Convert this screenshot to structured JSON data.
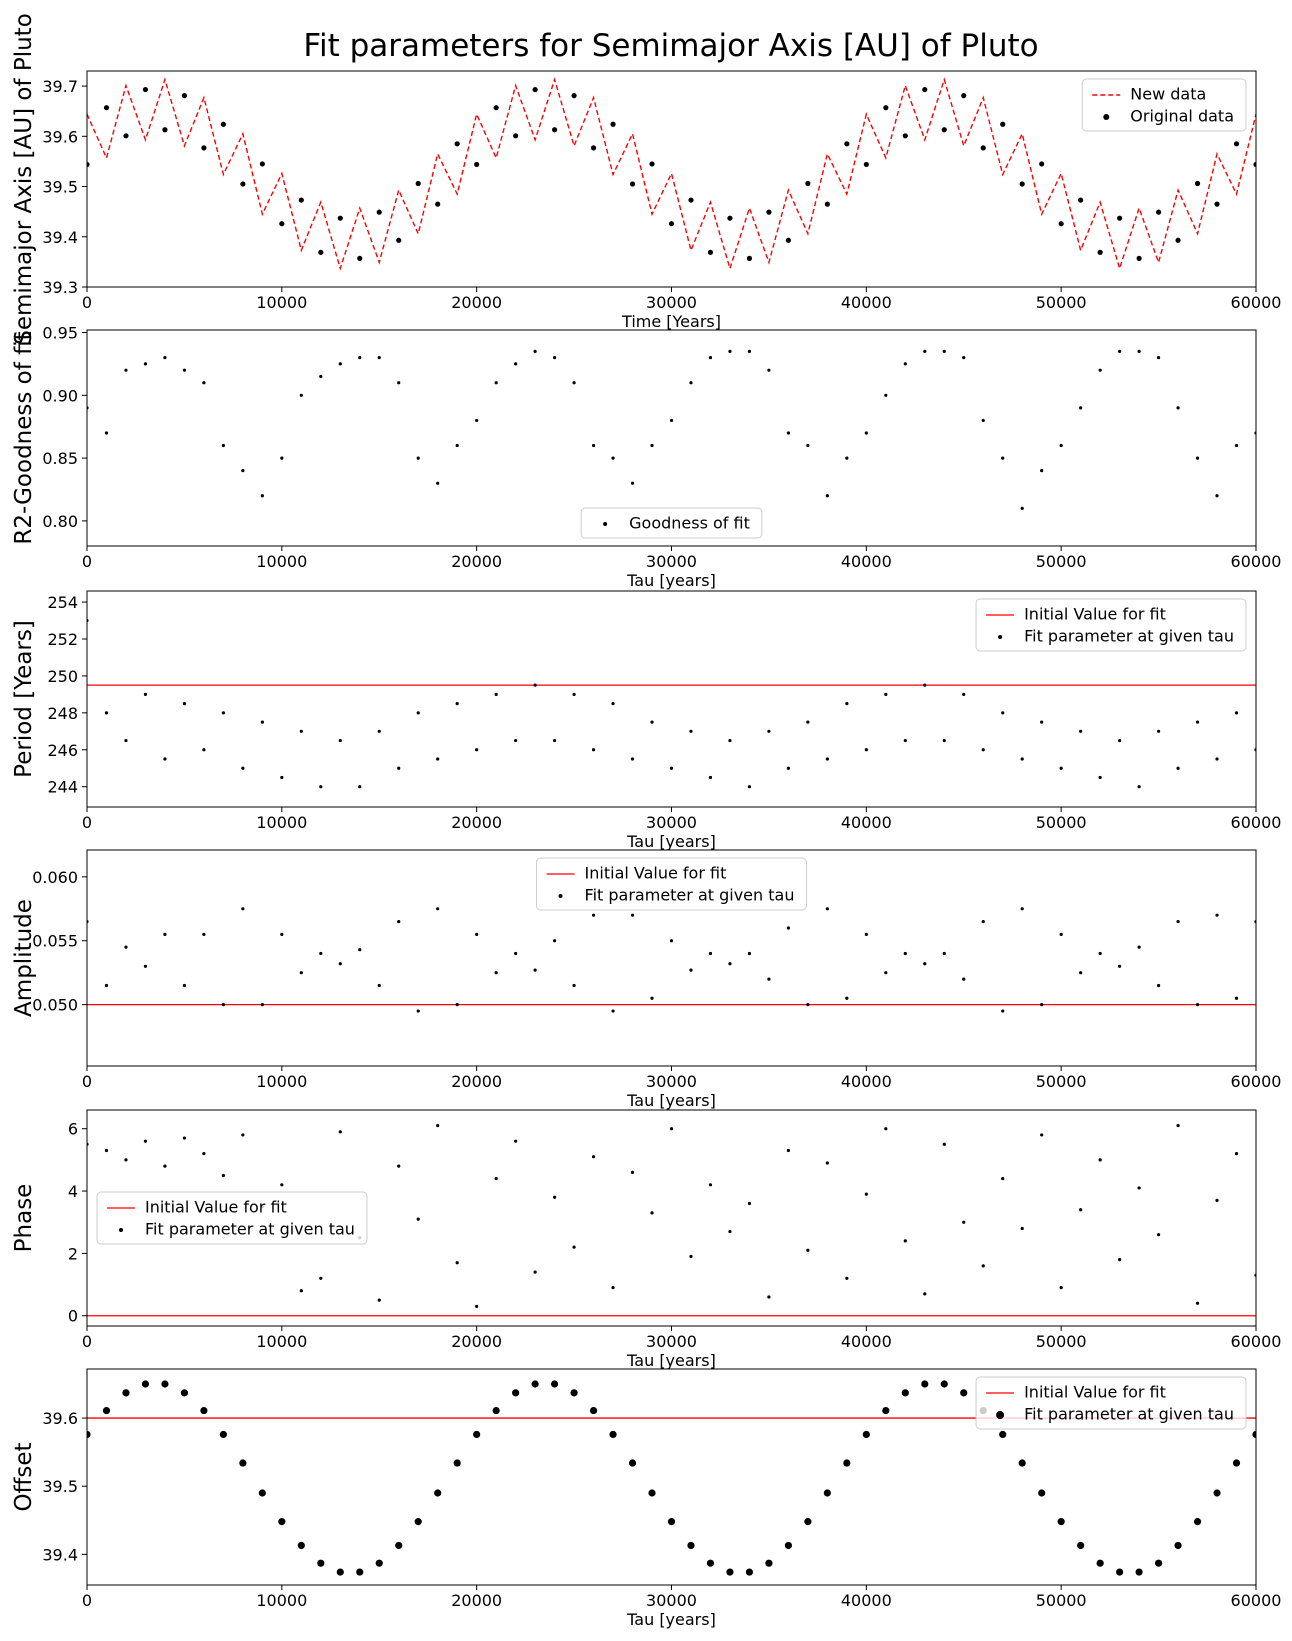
{
  "chart_data": [
    {
      "type": "line",
      "title": "Fit parameters for Semimajor Axis [AU] of Pluto",
      "xlabel": "Time [Years]",
      "ylabel": "Semimajor Axis [AU] of Pluto",
      "x": [
        0,
        1000,
        2000,
        3000,
        4000,
        5000,
        6000,
        7000,
        8000,
        9000,
        10000,
        11000,
        12000,
        13000,
        14000,
        15000,
        16000,
        17000,
        18000,
        19000,
        20000,
        21000,
        22000,
        23000,
        24000,
        25000,
        26000,
        27000,
        28000,
        29000,
        30000,
        31000,
        32000,
        33000,
        34000,
        35000,
        36000,
        37000,
        38000,
        39000,
        40000,
        41000,
        42000,
        43000,
        44000,
        45000,
        46000,
        47000,
        48000,
        49000,
        50000,
        51000,
        52000,
        53000,
        54000,
        55000,
        56000,
        57000,
        58000,
        59000,
        60000
      ],
      "series": [
        {
          "name": "New data",
          "color": "#ff0000",
          "mode": "dashed-line",
          "values": [
            39.644,
            39.557,
            39.701,
            39.593,
            39.713,
            39.581,
            39.677,
            39.524,
            39.605,
            39.445,
            39.526,
            39.373,
            39.469,
            39.337,
            39.457,
            39.349,
            39.493,
            39.406,
            39.565,
            39.485,
            39.644,
            39.557,
            39.701,
            39.593,
            39.713,
            39.581,
            39.677,
            39.524,
            39.605,
            39.445,
            39.526,
            39.373,
            39.469,
            39.337,
            39.457,
            39.349,
            39.493,
            39.406,
            39.565,
            39.485,
            39.644,
            39.557,
            39.701,
            39.593,
            39.713,
            39.581,
            39.677,
            39.524,
            39.605,
            39.445,
            39.526,
            39.373,
            39.469,
            39.337,
            39.457,
            39.349,
            39.493,
            39.406,
            39.565,
            39.485,
            39.644
          ]
        },
        {
          "name": "Original data",
          "color": "#000000",
          "mode": "points",
          "values": [
            39.544,
            39.657,
            39.601,
            39.693,
            39.613,
            39.681,
            39.577,
            39.624,
            39.505,
            39.545,
            39.426,
            39.473,
            39.369,
            39.437,
            39.357,
            39.449,
            39.393,
            39.506,
            39.465,
            39.585,
            39.544,
            39.657,
            39.601,
            39.693,
            39.613,
            39.681,
            39.577,
            39.624,
            39.505,
            39.545,
            39.426,
            39.473,
            39.369,
            39.437,
            39.357,
            39.449,
            39.393,
            39.506,
            39.465,
            39.585,
            39.544,
            39.657,
            39.601,
            39.693,
            39.613,
            39.681,
            39.577,
            39.624,
            39.505,
            39.545,
            39.426,
            39.473,
            39.369,
            39.437,
            39.357,
            39.449,
            39.393,
            39.506,
            39.465,
            39.585,
            39.544
          ]
        }
      ],
      "xlim": [
        0,
        60000
      ],
      "xticks": [
        0,
        10000,
        20000,
        30000,
        40000,
        50000,
        60000
      ],
      "ylim": [
        39.3,
        39.73
      ],
      "yticks": [
        39.3,
        39.4,
        39.5,
        39.6,
        39.7
      ],
      "legend": "upper right"
    },
    {
      "type": "scatter",
      "xlabel": "Tau [years]",
      "ylabel": "R2-Goodness of fit",
      "x": [
        0,
        1000,
        2000,
        3000,
        4000,
        5000,
        6000,
        7000,
        8000,
        9000,
        10000,
        11000,
        12000,
        13000,
        14000,
        15000,
        16000,
        17000,
        18000,
        19000,
        20000,
        21000,
        22000,
        23000,
        24000,
        25000,
        26000,
        27000,
        28000,
        29000,
        30000,
        31000,
        32000,
        33000,
        34000,
        35000,
        36000,
        37000,
        38000,
        39000,
        40000,
        41000,
        42000,
        43000,
        44000,
        45000,
        46000,
        47000,
        48000,
        49000,
        50000,
        51000,
        52000,
        53000,
        54000,
        55000,
        56000,
        57000,
        58000,
        59000,
        60000
      ],
      "series": [
        {
          "name": "Goodness of fit",
          "color": "#000000",
          "mode": "points",
          "values": [
            0.89,
            0.87,
            0.92,
            0.925,
            0.93,
            0.92,
            0.91,
            0.86,
            0.84,
            0.82,
            0.85,
            0.9,
            0.915,
            0.925,
            0.93,
            0.93,
            0.91,
            0.85,
            0.83,
            0.86,
            0.88,
            0.91,
            0.925,
            0.935,
            0.93,
            0.91,
            0.86,
            0.85,
            0.83,
            0.86,
            0.88,
            0.91,
            0.93,
            0.935,
            0.935,
            0.92,
            0.87,
            0.86,
            0.82,
            0.85,
            0.87,
            0.9,
            0.925,
            0.935,
            0.935,
            0.93,
            0.88,
            0.85,
            0.81,
            0.84,
            0.86,
            0.89,
            0.92,
            0.935,
            0.935,
            0.93,
            0.89,
            0.85,
            0.82,
            0.86,
            0.87
          ]
        }
      ],
      "xlim": [
        0,
        60000
      ],
      "xticks": [
        0,
        10000,
        20000,
        30000,
        40000,
        50000,
        60000
      ],
      "ylim": [
        0.78,
        0.952
      ],
      "yticks": [
        {
          "value": 0.8,
          "label": "0.80"
        },
        0.85,
        {
          "value": 0.9,
          "label": "0.90"
        },
        0.95
      ],
      "legend": "lower center"
    },
    {
      "type": "scatter",
      "xlabel": "Tau [years]",
      "ylabel": "Period [Years]",
      "x": [
        0,
        1000,
        2000,
        3000,
        4000,
        5000,
        6000,
        7000,
        8000,
        9000,
        10000,
        11000,
        12000,
        13000,
        14000,
        15000,
        16000,
        17000,
        18000,
        19000,
        20000,
        21000,
        22000,
        23000,
        24000,
        25000,
        26000,
        27000,
        28000,
        29000,
        30000,
        31000,
        32000,
        33000,
        34000,
        35000,
        36000,
        37000,
        38000,
        39000,
        40000,
        41000,
        42000,
        43000,
        44000,
        45000,
        46000,
        47000,
        48000,
        49000,
        50000,
        51000,
        52000,
        53000,
        54000,
        55000,
        56000,
        57000,
        58000,
        59000,
        60000
      ],
      "hline": {
        "name": "Initial Value for fit",
        "color": "#ff0000",
        "value": 249.5
      },
      "series": [
        {
          "name": "Fit parameter at given tau",
          "color": "#000000",
          "mode": "points",
          "values": [
            253,
            248,
            246.5,
            249,
            245.5,
            248.5,
            246,
            248,
            245,
            247.5,
            244.5,
            247,
            244,
            246.5,
            244,
            247,
            245,
            248,
            245.5,
            248.5,
            246,
            249,
            246.5,
            249.5,
            246.5,
            249,
            246,
            248.5,
            245.5,
            247.5,
            245,
            247,
            244.5,
            246.5,
            244,
            247,
            245,
            247.5,
            245.5,
            248.5,
            246,
            249,
            246.5,
            249.5,
            246.5,
            249,
            246,
            248,
            245.5,
            247.5,
            245,
            247,
            244.5,
            246.5,
            244,
            247,
            245,
            247.5,
            245.5,
            248,
            246
          ]
        }
      ],
      "xlim": [
        0,
        60000
      ],
      "xticks": [
        0,
        10000,
        20000,
        30000,
        40000,
        50000,
        60000
      ],
      "ylim": [
        242.9,
        254.6
      ],
      "yticks": [
        244,
        246,
        248,
        250,
        252,
        254
      ],
      "legend": "upper right"
    },
    {
      "type": "scatter",
      "xlabel": "Tau [years]",
      "ylabel": "Amplitude",
      "x": [
        0,
        1000,
        2000,
        3000,
        4000,
        5000,
        6000,
        7000,
        8000,
        9000,
        10000,
        11000,
        12000,
        13000,
        14000,
        15000,
        16000,
        17000,
        18000,
        19000,
        20000,
        21000,
        22000,
        23000,
        24000,
        25000,
        26000,
        27000,
        28000,
        29000,
        30000,
        31000,
        32000,
        33000,
        34000,
        35000,
        36000,
        37000,
        38000,
        39000,
        40000,
        41000,
        42000,
        43000,
        44000,
        45000,
        46000,
        47000,
        48000,
        49000,
        50000,
        51000,
        52000,
        53000,
        54000,
        55000,
        56000,
        57000,
        58000,
        59000,
        60000
      ],
      "hline": {
        "name": "Initial Value for fit",
        "color": "#ff0000",
        "value": 0.05
      },
      "series": [
        {
          "name": "Fit parameter at given tau",
          "color": "#000000",
          "mode": "points",
          "values": [
            0.0565,
            0.0515,
            0.0545,
            0.053,
            0.0555,
            0.0515,
            0.0555,
            0.05,
            0.0575,
            0.05,
            0.0555,
            0.0525,
            0.054,
            0.0532,
            0.0543,
            0.0515,
            0.0565,
            0.0495,
            0.0575,
            0.05,
            0.0555,
            0.0525,
            0.054,
            0.0527,
            0.055,
            0.0515,
            0.057,
            0.0495,
            0.057,
            0.0505,
            0.055,
            0.0527,
            0.054,
            0.0532,
            0.054,
            0.052,
            0.056,
            0.05,
            0.0575,
            0.0505,
            0.0555,
            0.0525,
            0.054,
            0.0532,
            0.054,
            0.052,
            0.0565,
            0.0495,
            0.0575,
            0.05,
            0.0555,
            0.0525,
            0.054,
            0.053,
            0.0545,
            0.0515,
            0.0565,
            0.05,
            0.057,
            0.0505,
            0.0565
          ]
        }
      ],
      "xlim": [
        0,
        60000
      ],
      "xticks": [
        0,
        10000,
        20000,
        30000,
        40000,
        50000,
        60000
      ],
      "ylim": [
        0.0452,
        0.0621
      ],
      "yticks": [
        {
          "value": 0.05,
          "label": "0.050"
        },
        0.055,
        {
          "value": 0.06,
          "label": "0.060"
        }
      ],
      "legend": "upper center"
    },
    {
      "type": "scatter",
      "xlabel": "Tau [years]",
      "ylabel": "Phase",
      "x": [
        0,
        1000,
        2000,
        3000,
        4000,
        5000,
        6000,
        7000,
        8000,
        9000,
        10000,
        11000,
        12000,
        13000,
        14000,
        15000,
        16000,
        17000,
        18000,
        19000,
        20000,
        21000,
        22000,
        23000,
        24000,
        25000,
        26000,
        27000,
        28000,
        29000,
        30000,
        31000,
        32000,
        33000,
        34000,
        35000,
        36000,
        37000,
        38000,
        39000,
        40000,
        41000,
        42000,
        43000,
        44000,
        45000,
        46000,
        47000,
        48000,
        49000,
        50000,
        51000,
        52000,
        53000,
        54000,
        55000,
        56000,
        57000,
        58000,
        59000,
        60000
      ],
      "hline": {
        "name": "Initial Value for fit",
        "color": "#ff0000",
        "value": 0
      },
      "series": [
        {
          "name": "Fit parameter at given tau",
          "color": "#000000",
          "mode": "points",
          "values": [
            5.5,
            5.3,
            5.0,
            5.6,
            4.8,
            5.7,
            5.2,
            4.5,
            5.8,
            3.5,
            4.2,
            0.8,
            1.2,
            5.9,
            2.5,
            0.5,
            4.8,
            3.1,
            6.1,
            1.7,
            0.3,
            4.4,
            5.6,
            1.4,
            3.8,
            2.2,
            5.1,
            0.9,
            4.6,
            3.3,
            6.0,
            1.9,
            4.2,
            2.7,
            3.6,
            0.6,
            5.3,
            2.1,
            4.9,
            1.2,
            3.9,
            6.0,
            2.4,
            0.7,
            5.5,
            3.0,
            1.6,
            4.4,
            2.8,
            5.8,
            0.9,
            3.4,
            5.0,
            1.8,
            4.1,
            2.6,
            6.1,
            0.4,
            3.7,
            5.2,
            1.3
          ]
        }
      ],
      "xlim": [
        0,
        60000
      ],
      "xticks": [
        0,
        10000,
        20000,
        30000,
        40000,
        50000,
        60000
      ],
      "ylim": [
        -0.33,
        6.6
      ],
      "yticks": [
        0,
        2,
        4,
        6
      ],
      "legend": "center left"
    },
    {
      "type": "scatter",
      "xlabel": "Tau [years]",
      "ylabel": "Offset",
      "x": [
        0,
        1000,
        2000,
        3000,
        4000,
        5000,
        6000,
        7000,
        8000,
        9000,
        10000,
        11000,
        12000,
        13000,
        14000,
        15000,
        16000,
        17000,
        18000,
        19000,
        20000,
        21000,
        22000,
        23000,
        24000,
        25000,
        26000,
        27000,
        28000,
        29000,
        30000,
        31000,
        32000,
        33000,
        34000,
        35000,
        36000,
        37000,
        38000,
        39000,
        40000,
        41000,
        42000,
        43000,
        44000,
        45000,
        46000,
        47000,
        48000,
        49000,
        50000,
        51000,
        52000,
        53000,
        54000,
        55000,
        56000,
        57000,
        58000,
        59000,
        60000
      ],
      "hline": {
        "name": "Initial Value for fit",
        "color": "#ff0000",
        "value": 39.6
      },
      "series": [
        {
          "name": "Fit parameter at given tau",
          "color": "#000000",
          "mode": "points",
          "values": [
            39.576,
            39.611,
            39.637,
            39.65,
            39.65,
            39.637,
            39.611,
            39.576,
            39.534,
            39.49,
            39.448,
            39.413,
            39.387,
            39.374,
            39.374,
            39.387,
            39.413,
            39.448,
            39.49,
            39.534,
            39.576,
            39.611,
            39.637,
            39.65,
            39.65,
            39.637,
            39.611,
            39.576,
            39.534,
            39.49,
            39.448,
            39.413,
            39.387,
            39.374,
            39.374,
            39.387,
            39.413,
            39.448,
            39.49,
            39.534,
            39.576,
            39.611,
            39.637,
            39.65,
            39.65,
            39.637,
            39.611,
            39.576,
            39.534,
            39.49,
            39.448,
            39.413,
            39.387,
            39.374,
            39.374,
            39.387,
            39.413,
            39.448,
            39.49,
            39.534,
            39.576
          ]
        }
      ],
      "xlim": [
        0,
        60000
      ],
      "xticks": [
        0,
        10000,
        20000,
        30000,
        40000,
        50000,
        60000
      ],
      "ylim": [
        39.355,
        39.672
      ],
      "yticks": [
        39.4,
        39.5,
        39.6
      ],
      "legend": "upper right"
    }
  ]
}
